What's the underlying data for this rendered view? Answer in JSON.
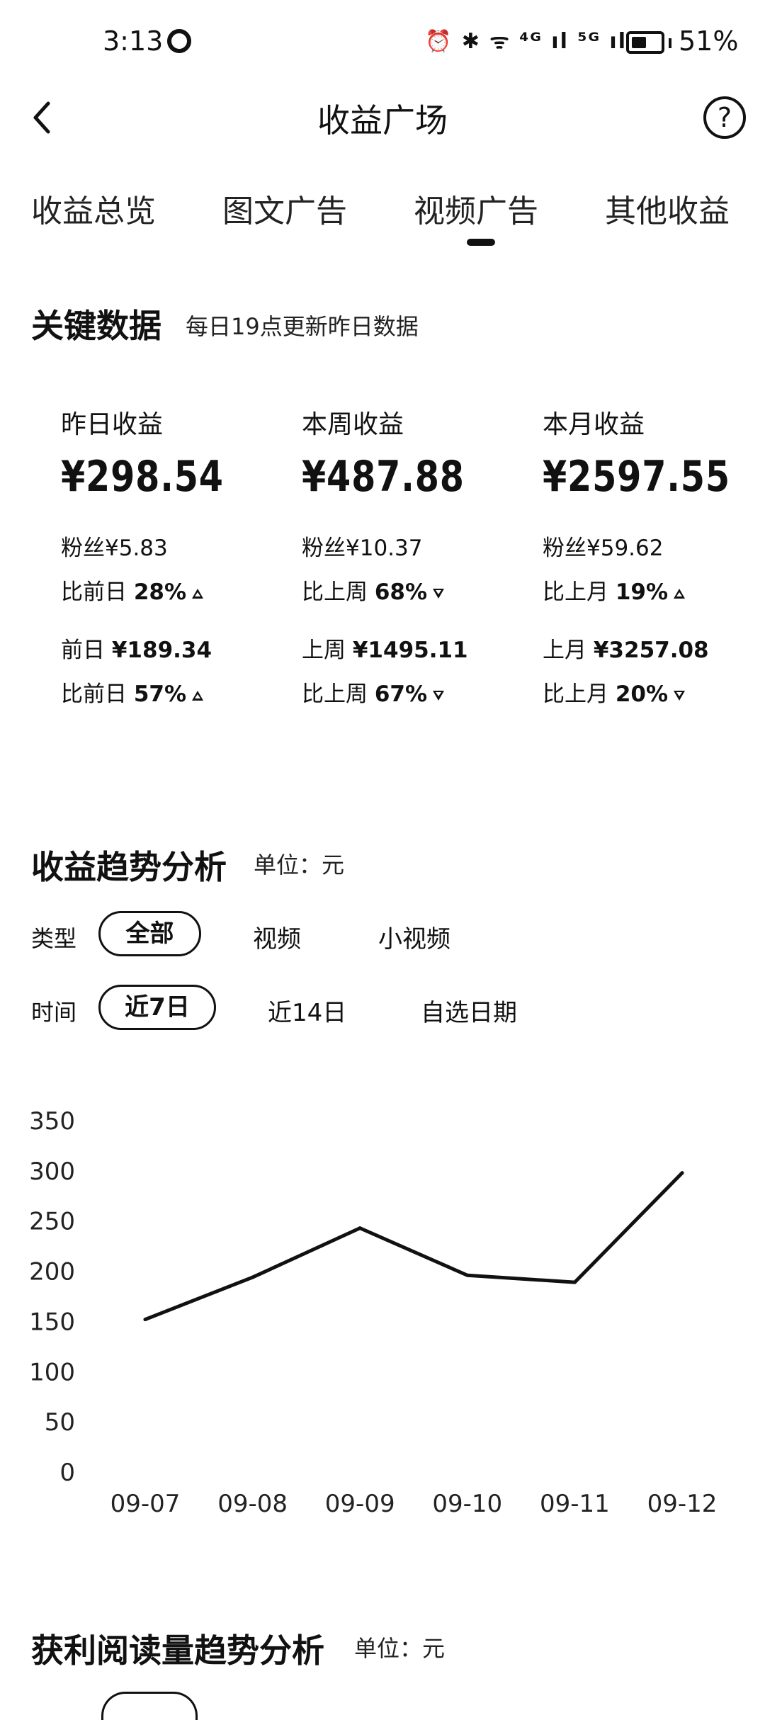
{
  "status": {
    "time": "3:13",
    "icons": "⏰ ✱ ᯤ ⁴ᴳ ıl ⁵ᴳ ıl",
    "battery": "51%"
  },
  "header": {
    "title": "收益广场",
    "help": "?"
  },
  "tabs": [
    {
      "label": "收益总览"
    },
    {
      "label": "图文广告"
    },
    {
      "label": "视频广告",
      "active": true
    },
    {
      "label": "其他收益"
    }
  ],
  "key_data": {
    "title": "关键数据",
    "subtitle": "每日19点更新昨日数据",
    "columns": [
      {
        "label": "昨日收益",
        "amount": "¥298.54",
        "fans_prefix": "粉丝",
        "fans": "¥5.83",
        "cmp1_prefix": "比前日",
        "cmp1": "28%",
        "cmp1_dir": "up",
        "prev_prefix": "前日",
        "prev": "¥189.34",
        "cmp2_prefix": "比前日",
        "cmp2": "57%",
        "cmp2_dir": "up"
      },
      {
        "label": "本周收益",
        "amount": "¥487.88",
        "fans_prefix": "粉丝",
        "fans": "¥10.37",
        "cmp1_prefix": "比上周",
        "cmp1": "68%",
        "cmp1_dir": "down",
        "prev_prefix": "上周",
        "prev": "¥1495.11",
        "cmp2_prefix": "比上周",
        "cmp2": "67%",
        "cmp2_dir": "down"
      },
      {
        "label": "本月收益",
        "amount": "¥2597.55",
        "fans_prefix": "粉丝",
        "fans": "¥59.62",
        "cmp1_prefix": "比上月",
        "cmp1": "19%",
        "cmp1_dir": "up",
        "prev_prefix": "上月",
        "prev": "¥3257.08",
        "cmp2_prefix": "比上月",
        "cmp2": "20%",
        "cmp2_dir": "down"
      }
    ]
  },
  "trend": {
    "title": "收益趋势分析",
    "unit": "单位：元",
    "type_label": "类型",
    "type_options": [
      "全部",
      "视频",
      "小视频"
    ],
    "time_label": "时间",
    "time_options": [
      "近7日",
      "近14日",
      "自选日期"
    ]
  },
  "chart_data": {
    "type": "line",
    "x": [
      "09-07",
      "09-08",
      "09-09",
      "09-10",
      "09-11",
      "09-12"
    ],
    "series": [
      {
        "values": [
          152,
          194,
          243,
          196,
          189,
          298
        ]
      }
    ],
    "ylim": [
      0,
      350
    ],
    "yticks": [
      0,
      50,
      100,
      150,
      200,
      250,
      300,
      350
    ],
    "grid": false,
    "colors": {
      "line": "#111111"
    }
  },
  "reads": {
    "title": "获利阅读量趋势分析",
    "unit": "单位：元"
  }
}
